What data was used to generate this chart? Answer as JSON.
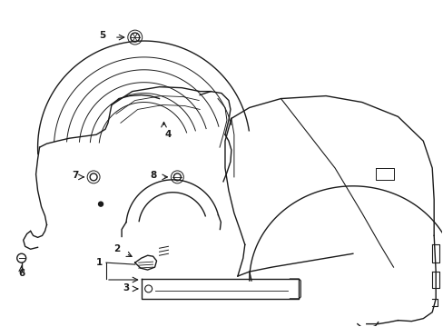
{
  "bg_color": "#ffffff",
  "line_color": "#1a1a1a",
  "lw": 1.0,
  "fs": 7.5,
  "figsize": [
    4.89,
    3.6
  ],
  "dpi": 100
}
